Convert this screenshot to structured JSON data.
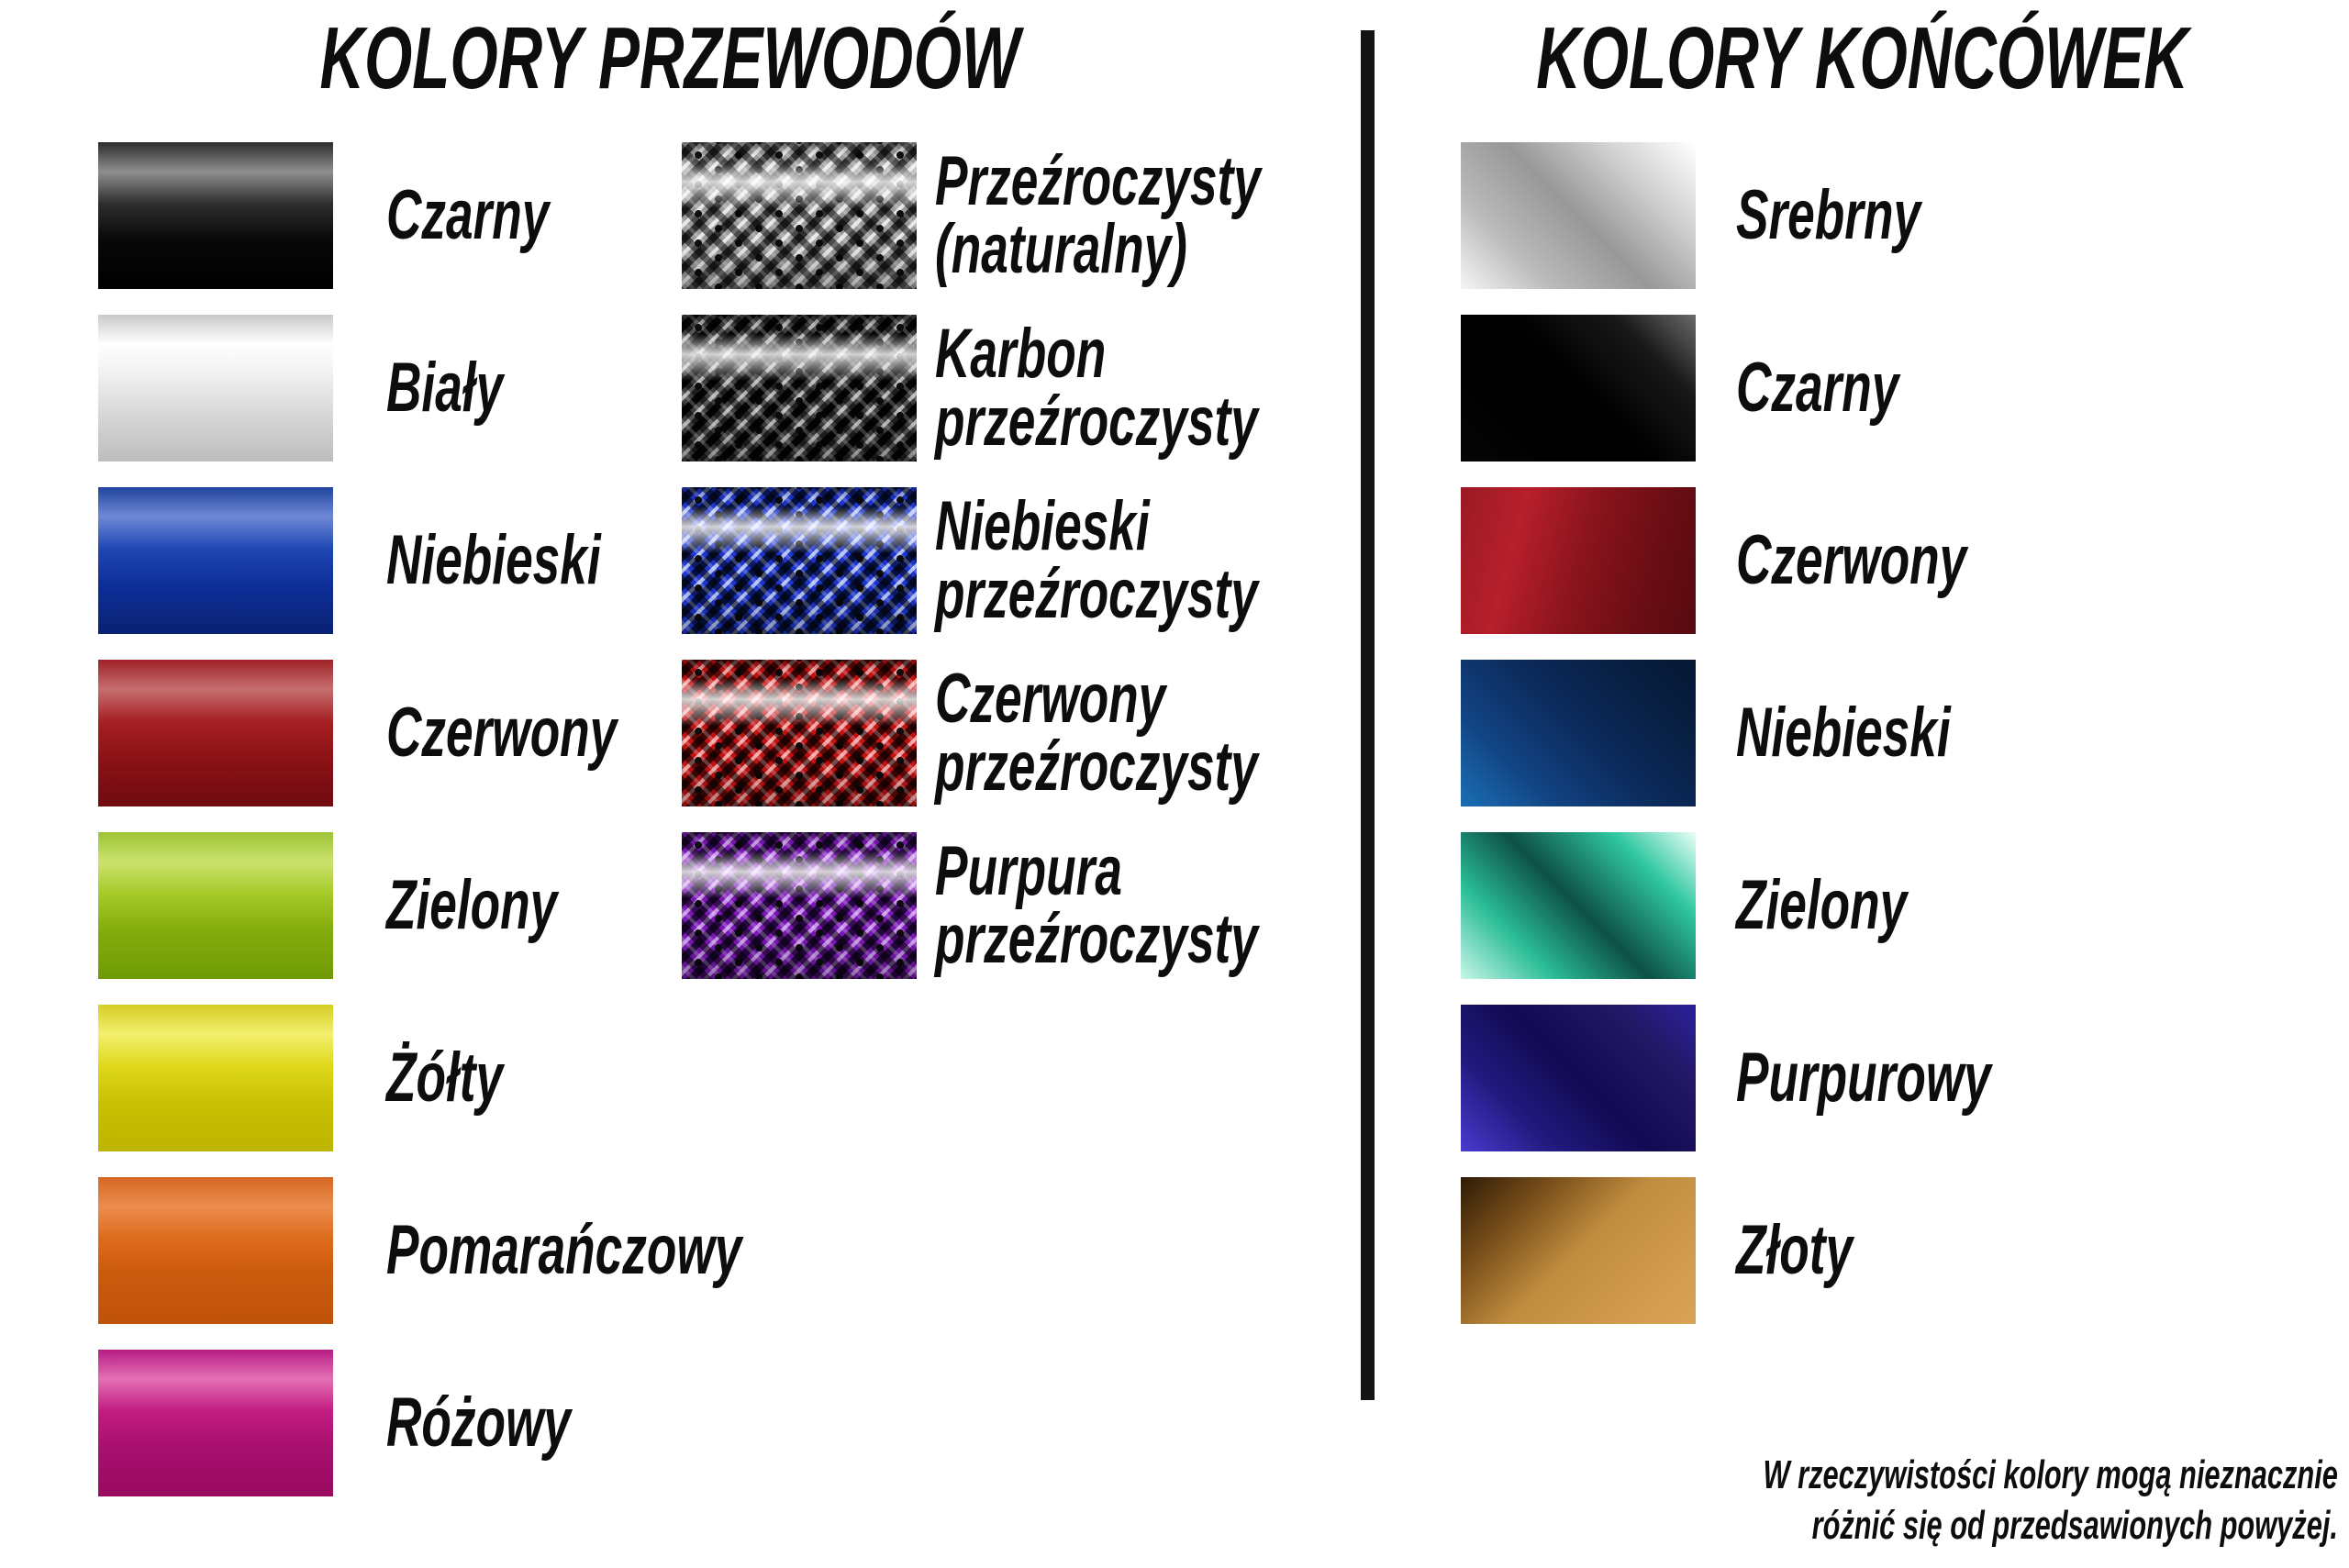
{
  "wires": {
    "title": "KOLORY PRZEWODÓW",
    "solid": [
      {
        "label": "Czarny",
        "colors": [
          "#2b2b2b",
          "#8f8f8f",
          "#2e2e2e",
          "#080808",
          "#000000"
        ]
      },
      {
        "label": "Biały",
        "colors": [
          "#c9c9c9",
          "#ffffff",
          "#efefef",
          "#d9d9d9",
          "#bdbdbd"
        ]
      },
      {
        "label": "Niebieski",
        "colors": [
          "#21449e",
          "#7089d6",
          "#1e47b2",
          "#0e2f9a",
          "#0a2173"
        ]
      },
      {
        "label": "Czerwony",
        "colors": [
          "#9e2227",
          "#c66f70",
          "#a62024",
          "#8c1216",
          "#700b10"
        ]
      },
      {
        "label": "Zielony",
        "colors": [
          "#9cc433",
          "#cbe26e",
          "#a6ca28",
          "#84ad0d",
          "#6f9a04"
        ]
      },
      {
        "label": "Żółty",
        "colors": [
          "#d6cd24",
          "#f2ef6e",
          "#dfd81a",
          "#c9c104",
          "#bdb400"
        ]
      },
      {
        "label": "Pomarańczowy",
        "colors": [
          "#d46722",
          "#ec8d4e",
          "#dd6b1c",
          "#cb5a0e",
          "#c0530a"
        ]
      },
      {
        "label": "Różowy",
        "colors": [
          "#b51d85",
          "#e470b3",
          "#c21c82",
          "#a81070",
          "#98095f"
        ]
      }
    ],
    "braided": [
      {
        "line1": "Przeźroczysty",
        "line2": "(naturalny)",
        "colors": [
          "#9a9a9a",
          "#e6e6e6",
          "#2e2e2e"
        ]
      },
      {
        "line1": "Karbon",
        "line2": "przeźroczysty",
        "colors": [
          "#3e3e3e",
          "#b4b4b4",
          "#050505"
        ]
      },
      {
        "line1": "Niebieski",
        "line2": "przeźroczysty",
        "colors": [
          "#1d35cc",
          "#aebdf2",
          "#04103e"
        ]
      },
      {
        "line1": "Czerwony",
        "line2": "przeźroczysty",
        "colors": [
          "#c11212",
          "#f2a0a0",
          "#3c0404"
        ]
      },
      {
        "line1": "Purpura",
        "line2": "przeźroczysty",
        "colors": [
          "#7a18b4",
          "#c794ea",
          "#260642"
        ]
      }
    ]
  },
  "tips": {
    "title": "KOLORY KOŃCÓWEK",
    "items": [
      {
        "label": "Srebrny",
        "colors": [
          "#f5f5f5",
          "#b9b9b9",
          "#989898",
          "#d6d6d6",
          "#ffffff"
        ]
      },
      {
        "label": "Czarny",
        "colors": [
          "#060606",
          "#000000",
          "#000000",
          "#181818",
          "#6a6a6a"
        ]
      },
      {
        "label": "Czerwony",
        "colors": [
          "#9a1a24",
          "#b71f2b",
          "#8c141d",
          "#6a0d14",
          "#570a10"
        ]
      },
      {
        "label": "Niebieski",
        "colors": [
          "#1b6fb5",
          "#124484",
          "#0c2c5e",
          "#081f42",
          "#061833"
        ]
      },
      {
        "label": "Zielony",
        "colors": [
          "#c9f6e9",
          "#2abd96",
          "#0d5047",
          "#2fc7a0",
          "#eafff8"
        ]
      },
      {
        "label": "Purpurowy",
        "colors": [
          "#4a3ad0",
          "#221a7e",
          "#120a52",
          "#221866",
          "#2c209c"
        ]
      },
      {
        "label": "Złoty",
        "colors": [
          "#2e1c06",
          "#7a4f1a",
          "#c08c3e",
          "#d09a4e",
          "#daa458"
        ]
      }
    ]
  },
  "note": {
    "line1": "W rzeczywistości kolory mogą nieznacznie",
    "line2": "różnić się od przedsawionych powyżej."
  },
  "divider_color": "#141414",
  "text_color": "#0d0d0d",
  "background": "#ffffff"
}
